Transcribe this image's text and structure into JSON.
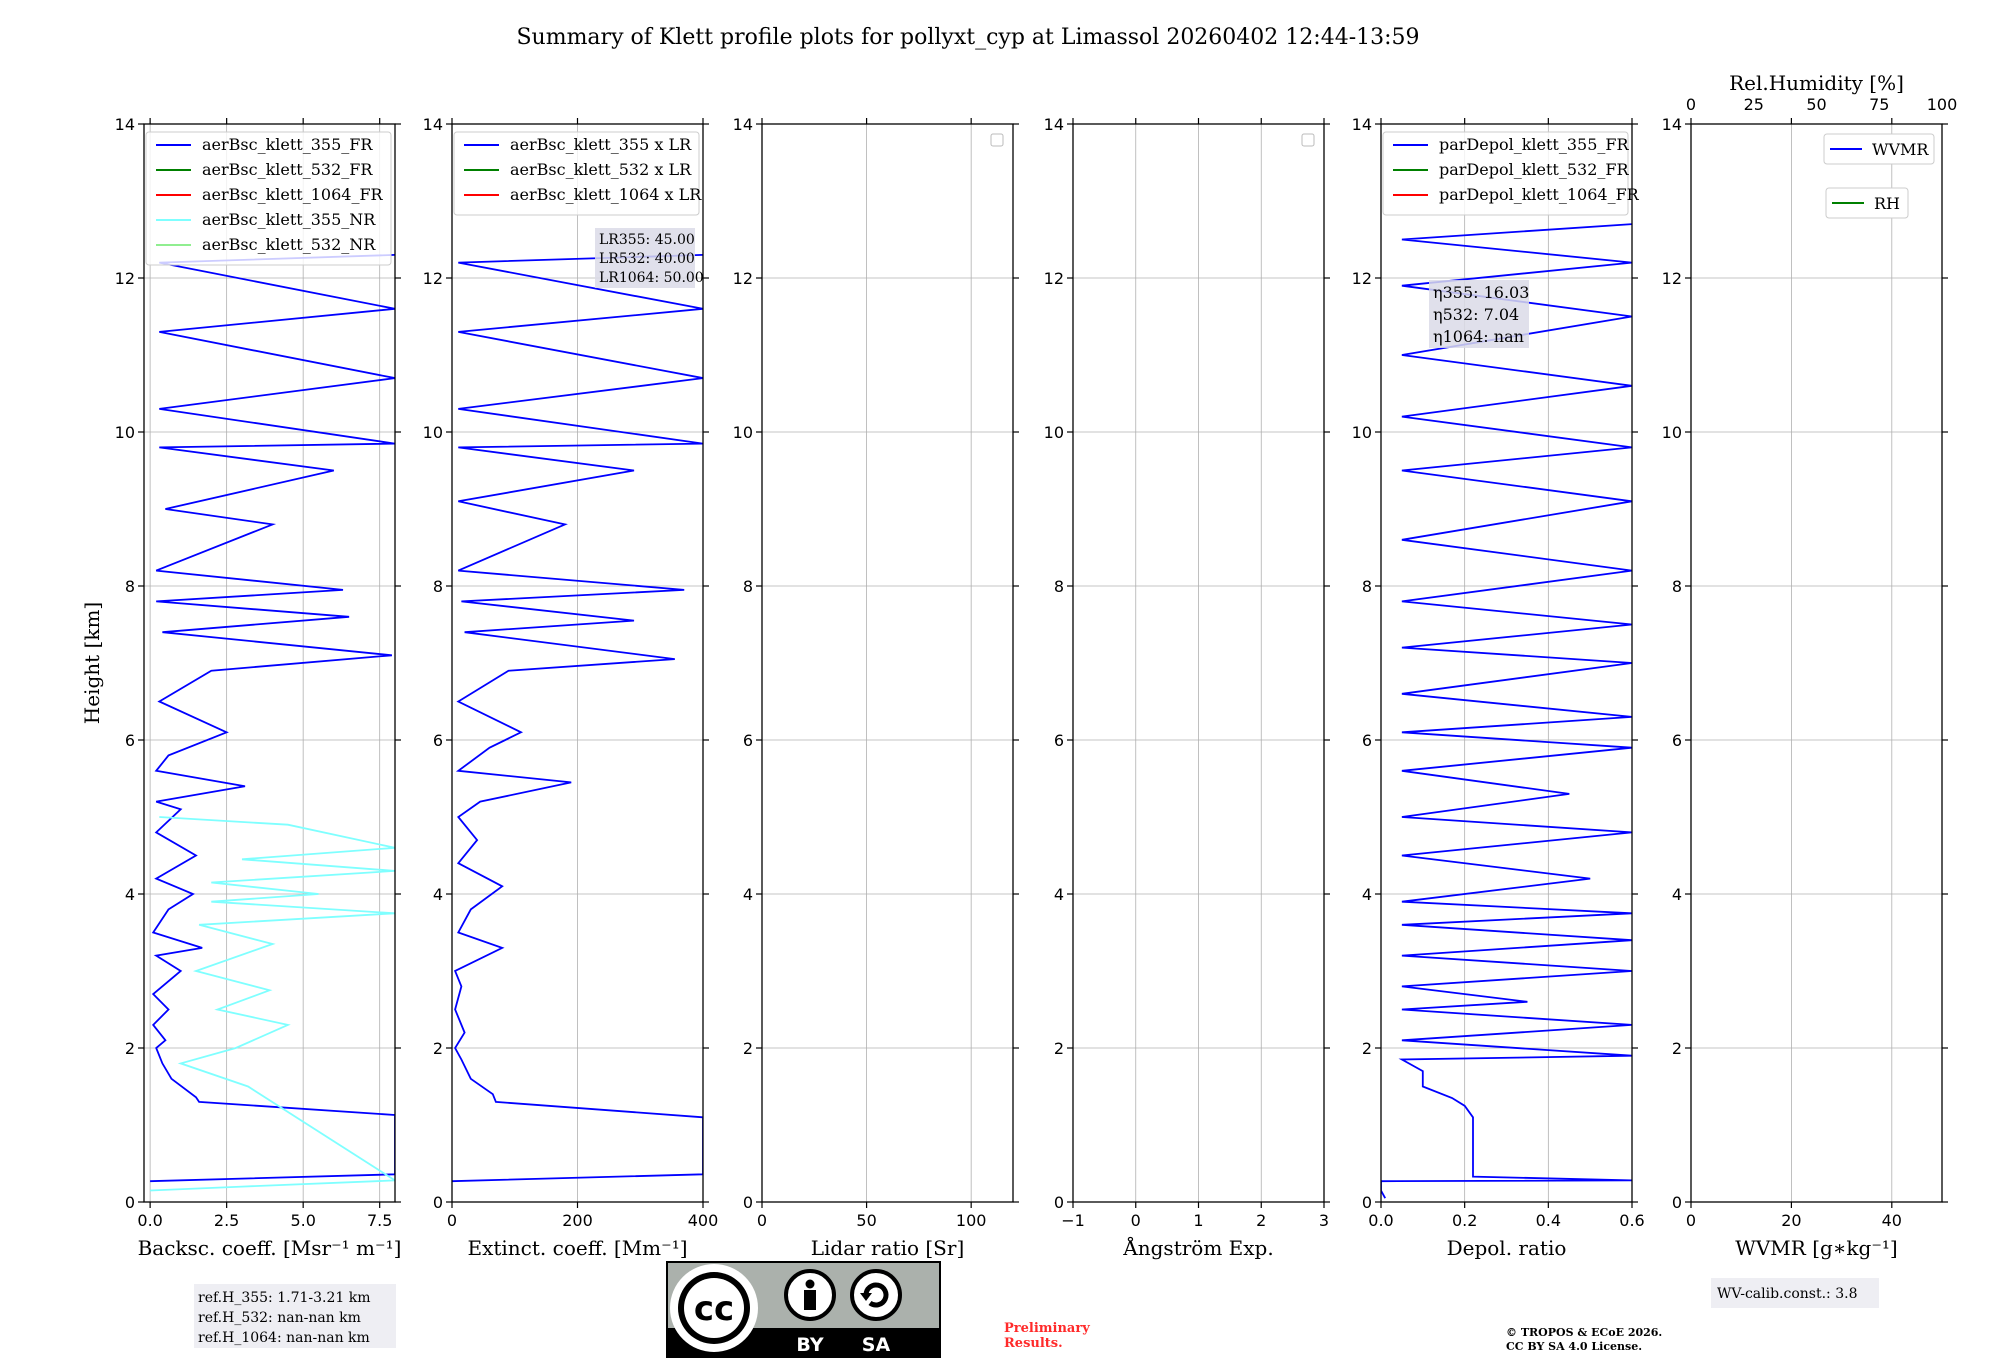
{
  "title": "Summary of Klett profile plots for pollyxt_cyp at Limassol 20260402 12:44-13:59",
  "colors": {
    "c355": "#0000ff",
    "c532": "#008000",
    "c1064": "#ff0000",
    "cNR": "#7fffff"
  },
  "chart_data": [
    {
      "type": "line",
      "name": "backscatter",
      "xlabel": "Backsc. coeff. [Msr⁻¹ m⁻¹]",
      "ylabel": "Height [km]",
      "xlim": [
        -0.2,
        8.0
      ],
      "ylim": [
        0,
        14
      ],
      "xticks": [
        0.0,
        2.5,
        5.0,
        7.5
      ],
      "xticklabels": [
        "0.0",
        "2.5",
        "5.0",
        "7.5"
      ],
      "yticks": [
        0,
        2,
        4,
        6,
        8,
        10,
        12,
        14
      ],
      "legend": [
        "aerBsc_klett_355_FR",
        "aerBsc_klett_532_FR",
        "aerBsc_klett_1064_FR",
        "aerBsc_klett_355_NR",
        "aerBsc_klett_532_NR"
      ],
      "series": [
        {
          "name": "aerBsc_klett_355_FR",
          "color": "c355",
          "points": [
            [
              0.0,
              0.27
            ],
            [
              8.0,
              0.36
            ],
            [
              8.0,
              1.13
            ],
            [
              1.6,
              1.3
            ],
            [
              1.5,
              1.36
            ],
            [
              0.7,
              1.6
            ],
            [
              0.4,
              1.8
            ],
            [
              0.2,
              2.0
            ],
            [
              0.5,
              2.1
            ],
            [
              0.1,
              2.3
            ],
            [
              0.6,
              2.5
            ],
            [
              0.1,
              2.7
            ],
            [
              1.0,
              3.0
            ],
            [
              0.2,
              3.2
            ],
            [
              1.7,
              3.3
            ],
            [
              0.1,
              3.5
            ],
            [
              0.6,
              3.8
            ],
            [
              1.4,
              4.0
            ],
            [
              0.2,
              4.2
            ],
            [
              1.5,
              4.5
            ],
            [
              0.2,
              4.8
            ],
            [
              1.0,
              5.1
            ],
            [
              0.2,
              5.2
            ],
            [
              3.1,
              5.4
            ],
            [
              0.2,
              5.6
            ],
            [
              0.6,
              5.8
            ],
            [
              2.5,
              6.1
            ],
            [
              0.3,
              6.5
            ],
            [
              2.0,
              6.9
            ],
            [
              7.9,
              7.1
            ],
            [
              0.4,
              7.4
            ],
            [
              6.5,
              7.6
            ],
            [
              0.2,
              7.8
            ],
            [
              6.3,
              7.95
            ],
            [
              0.2,
              8.2
            ],
            [
              4.0,
              8.8
            ],
            [
              0.5,
              9.0
            ],
            [
              6.0,
              9.5
            ],
            [
              0.3,
              9.8
            ],
            [
              8.0,
              9.85
            ],
            [
              0.3,
              10.3
            ],
            [
              8.0,
              10.7
            ],
            [
              0.3,
              11.3
            ],
            [
              8.0,
              11.6
            ],
            [
              0.3,
              12.2
            ],
            [
              8.0,
              12.3
            ]
          ]
        },
        {
          "name": "aerBsc_klett_355_NR",
          "color": "cNR",
          "points": [
            [
              0.0,
              0.15
            ],
            [
              3.0,
              0.2
            ],
            [
              8.0,
              0.28
            ],
            [
              3.2,
              1.5
            ],
            [
              1.0,
              1.8
            ],
            [
              2.8,
              2.0
            ],
            [
              4.5,
              2.3
            ],
            [
              2.2,
              2.5
            ],
            [
              3.9,
              2.75
            ],
            [
              1.5,
              3.0
            ],
            [
              4.0,
              3.35
            ],
            [
              1.6,
              3.6
            ],
            [
              8.0,
              3.75
            ],
            [
              2.0,
              3.9
            ],
            [
              5.5,
              4.0
            ],
            [
              2.0,
              4.15
            ],
            [
              8.0,
              4.3
            ],
            [
              3.0,
              4.45
            ],
            [
              8.0,
              4.6
            ],
            [
              4.5,
              4.9
            ],
            [
              0.3,
              5.0
            ]
          ]
        }
      ],
      "annotation": [
        "ref.H_355: 1.71-3.21 km",
        "ref.H_532: nan-nan km",
        "ref.H_1064: nan-nan km"
      ]
    },
    {
      "type": "line",
      "name": "extinction",
      "xlabel": "Extinct. coeff. [Mm⁻¹]",
      "ylabel": "",
      "xlim": [
        0,
        400
      ],
      "ylim": [
        0,
        14
      ],
      "xticks": [
        0,
        200,
        400
      ],
      "xticklabels": [
        "0",
        "200",
        "400"
      ],
      "yticks": [
        0,
        2,
        4,
        6,
        8,
        10,
        12,
        14
      ],
      "legend": [
        "aerBsc_klett_355 x LR",
        "aerBsc_klett_532 x LR",
        "aerBsc_klett_1064 x LR"
      ],
      "series": [
        {
          "name": "aerBsc_klett_355 x LR",
          "color": "c355",
          "points": [
            [
              0,
              0.27
            ],
            [
              400,
              0.36
            ],
            [
              400,
              1.1
            ],
            [
              70,
              1.3
            ],
            [
              65,
              1.4
            ],
            [
              30,
              1.6
            ],
            [
              15,
              1.85
            ],
            [
              5,
              2.0
            ],
            [
              20,
              2.2
            ],
            [
              5,
              2.5
            ],
            [
              15,
              2.8
            ],
            [
              5,
              3.0
            ],
            [
              80,
              3.3
            ],
            [
              10,
              3.5
            ],
            [
              30,
              3.8
            ],
            [
              80,
              4.1
            ],
            [
              10,
              4.4
            ],
            [
              40,
              4.7
            ],
            [
              10,
              5.0
            ],
            [
              45,
              5.2
            ],
            [
              190,
              5.45
            ],
            [
              10,
              5.6
            ],
            [
              60,
              5.9
            ],
            [
              110,
              6.1
            ],
            [
              10,
              6.5
            ],
            [
              90,
              6.9
            ],
            [
              355,
              7.05
            ],
            [
              20,
              7.4
            ],
            [
              290,
              7.55
            ],
            [
              15,
              7.8
            ],
            [
              370,
              7.95
            ],
            [
              10,
              8.2
            ],
            [
              180,
              8.8
            ],
            [
              10,
              9.1
            ],
            [
              290,
              9.5
            ],
            [
              10,
              9.8
            ],
            [
              400,
              9.85
            ],
            [
              10,
              10.3
            ],
            [
              400,
              10.7
            ],
            [
              10,
              11.3
            ],
            [
              400,
              11.6
            ],
            [
              10,
              12.2
            ],
            [
              400,
              12.3
            ]
          ]
        }
      ],
      "annotation": [
        "LR355: 45.00",
        "LR532: 40.00",
        "LR1064: 50.00"
      ]
    },
    {
      "type": "line",
      "name": "lidar-ratio",
      "xlabel": "Lidar ratio [Sr]",
      "ylabel": "",
      "xlim": [
        0,
        120
      ],
      "ylim": [
        0,
        14
      ],
      "xticks": [
        0,
        50,
        100
      ],
      "xticklabels": [
        "0",
        "50",
        "100"
      ],
      "yticks": [
        0,
        2,
        4,
        6,
        8,
        10,
        12,
        14
      ],
      "series": []
    },
    {
      "type": "line",
      "name": "angstrom",
      "xlabel": "Ångström Exp.",
      "ylabel": "",
      "xlim": [
        -1,
        3
      ],
      "ylim": [
        0,
        14
      ],
      "xticks": [
        -1,
        0,
        1,
        2,
        3
      ],
      "xticklabels": [
        "−1",
        "0",
        "1",
        "2",
        "3"
      ],
      "yticks": [
        0,
        2,
        4,
        6,
        8,
        10,
        12,
        14
      ],
      "series": []
    },
    {
      "type": "line",
      "name": "depol",
      "xlabel": "Depol. ratio",
      "ylabel": "",
      "xlim": [
        0,
        0.6
      ],
      "ylim": [
        0,
        14
      ],
      "xticks": [
        0.0,
        0.2,
        0.4,
        0.6
      ],
      "xticklabels": [
        "0.0",
        "0.2",
        "0.4",
        "0.6"
      ],
      "yticks": [
        0,
        2,
        4,
        6,
        8,
        10,
        12,
        14
      ],
      "legend": [
        "parDepol_klett_355_FR",
        "parDepol_klett_532_FR",
        "parDepol_klett_1064_FR"
      ],
      "series": [
        {
          "name": "parDepol_klett_355_FR",
          "color": "c355",
          "points": [
            [
              0.01,
              0.05
            ],
            [
              0.0,
              0.15
            ],
            [
              0.0,
              0.27
            ],
            [
              0.6,
              0.28
            ],
            [
              0.22,
              0.33
            ],
            [
              0.22,
              1.1
            ],
            [
              0.2,
              1.25
            ],
            [
              0.17,
              1.35
            ],
            [
              0.1,
              1.5
            ],
            [
              0.1,
              1.7
            ],
            [
              0.05,
              1.85
            ],
            [
              0.6,
              1.9
            ],
            [
              0.05,
              2.1
            ],
            [
              0.6,
              2.3
            ],
            [
              0.05,
              2.5
            ],
            [
              0.35,
              2.6
            ],
            [
              0.05,
              2.8
            ],
            [
              0.6,
              3.0
            ],
            [
              0.05,
              3.2
            ],
            [
              0.6,
              3.4
            ],
            [
              0.05,
              3.6
            ],
            [
              0.6,
              3.75
            ],
            [
              0.05,
              3.9
            ],
            [
              0.5,
              4.2
            ],
            [
              0.05,
              4.5
            ],
            [
              0.6,
              4.8
            ],
            [
              0.05,
              5.0
            ],
            [
              0.45,
              5.3
            ],
            [
              0.05,
              5.6
            ],
            [
              0.6,
              5.9
            ],
            [
              0.05,
              6.1
            ],
            [
              0.6,
              6.3
            ],
            [
              0.05,
              6.6
            ],
            [
              0.6,
              7.0
            ],
            [
              0.05,
              7.2
            ],
            [
              0.6,
              7.5
            ],
            [
              0.05,
              7.8
            ],
            [
              0.6,
              8.2
            ],
            [
              0.05,
              8.6
            ],
            [
              0.6,
              9.1
            ],
            [
              0.05,
              9.5
            ],
            [
              0.6,
              9.8
            ],
            [
              0.05,
              10.2
            ],
            [
              0.6,
              10.6
            ],
            [
              0.05,
              11.0
            ],
            [
              0.6,
              11.5
            ],
            [
              0.05,
              11.9
            ],
            [
              0.6,
              12.2
            ],
            [
              0.05,
              12.5
            ],
            [
              0.6,
              12.7
            ]
          ]
        }
      ],
      "annotation": [
        "η355: 16.03",
        "η532: 7.04",
        "η1064: nan"
      ]
    },
    {
      "type": "line",
      "name": "wvmr",
      "xlabel": "WVMR [g∗kg⁻¹]",
      "ylabel": "",
      "xlim": [
        0,
        50
      ],
      "ylim": [
        0,
        14
      ],
      "xticks": [
        0,
        20,
        40
      ],
      "xticklabels": [
        "0",
        "20",
        "40"
      ],
      "yticks": [
        0,
        2,
        4,
        6,
        8,
        10,
        12,
        14
      ],
      "top_axis": {
        "label": "Rel.Humidity [%]",
        "xlim": [
          0,
          100
        ],
        "ticks": [
          0,
          25,
          50,
          75,
          100
        ]
      },
      "legend": [
        "WVMR",
        "RH"
      ],
      "series": [],
      "annotation": [
        "WV-calib.const.: 3.8"
      ]
    }
  ],
  "license_badge": {
    "cc": "cc",
    "by": "BY",
    "sa": "SA"
  },
  "preliminary": [
    "Preliminary",
    "Results."
  ],
  "copyright": [
    "© TROPOS & ECoE 2026.",
    "CC BY SA 4.0 License."
  ]
}
